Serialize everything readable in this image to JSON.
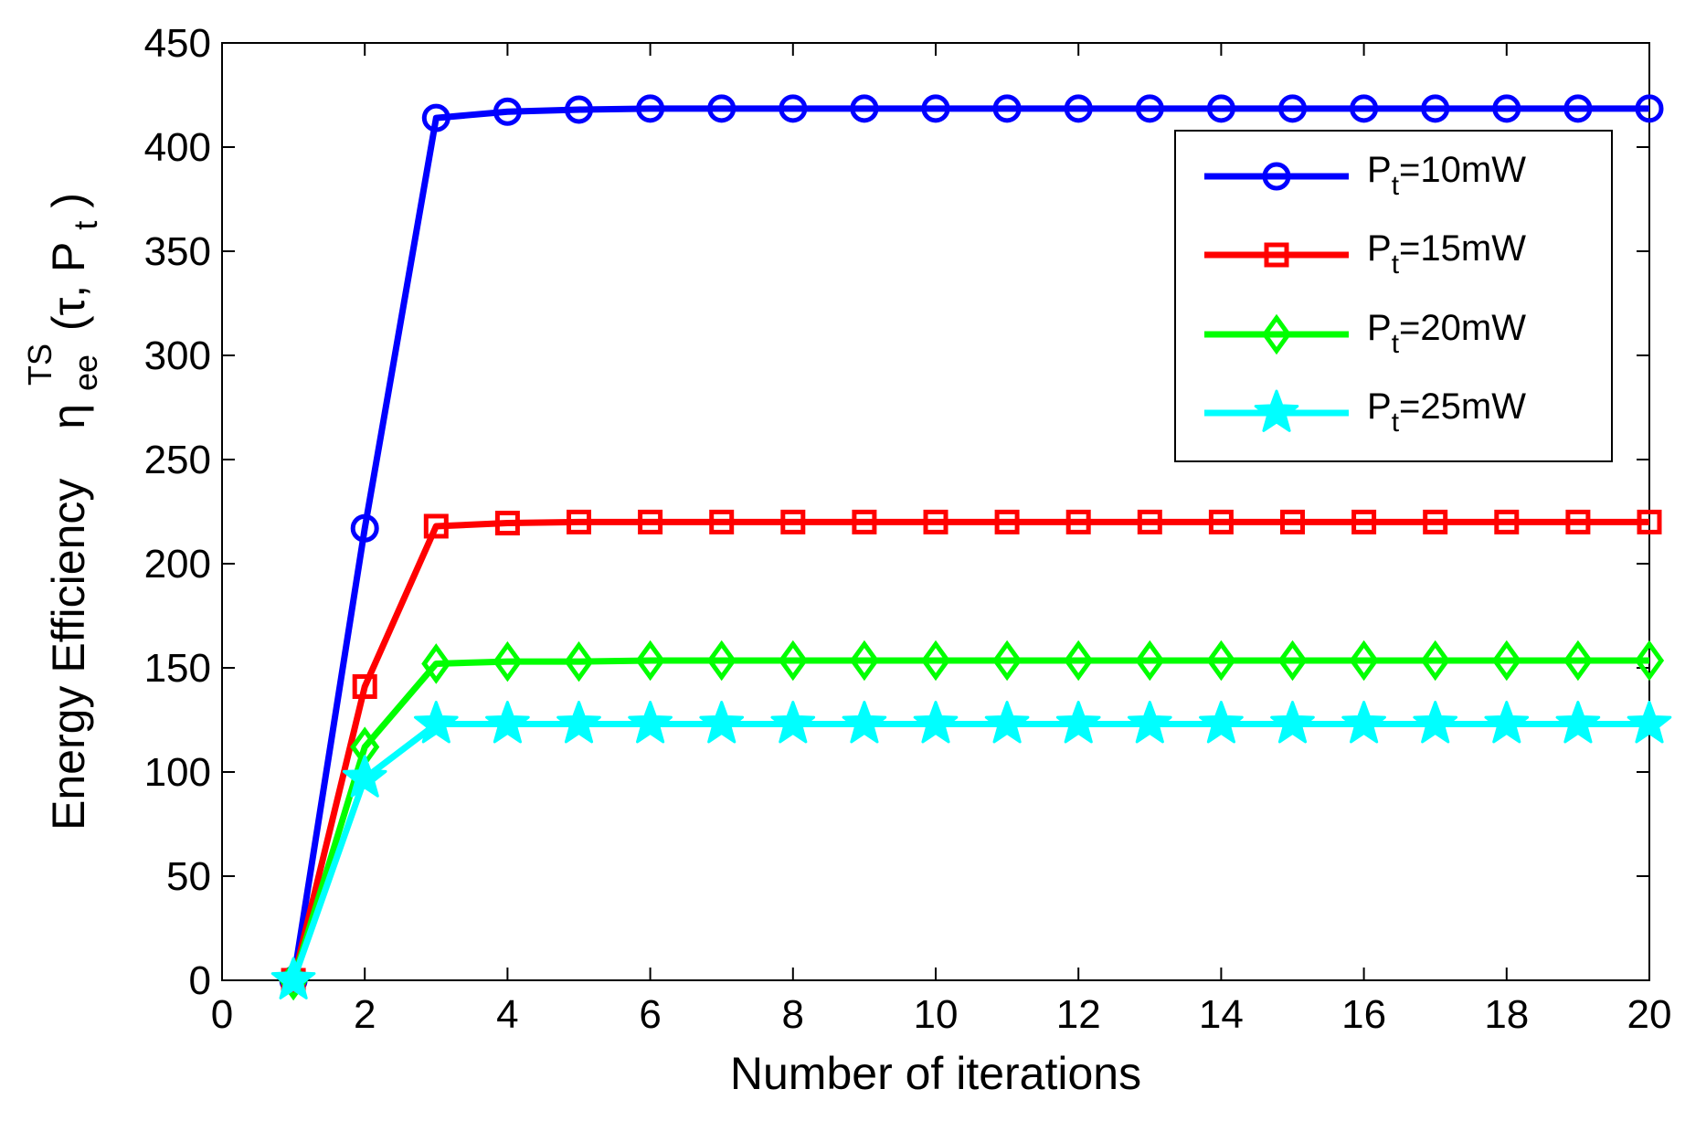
{
  "chart_data": {
    "type": "line",
    "xlabel": "Number of iterations",
    "ylabel": {
      "text": "Energy Efficiency",
      "symbol": "η",
      "sub": "ee",
      "sup": "TS",
      "args_open": "(τ, P",
      "args_sub": "t",
      "args_close": ")"
    },
    "xlim": [
      0,
      20
    ],
    "ylim": [
      0,
      450
    ],
    "x_ticks": [
      0,
      2,
      4,
      6,
      8,
      10,
      12,
      14,
      16,
      18,
      20
    ],
    "y_ticks": [
      0,
      50,
      100,
      150,
      200,
      250,
      300,
      350,
      400,
      450
    ],
    "grid": false,
    "legend_position": "top-right",
    "x": [
      1,
      2,
      3,
      4,
      5,
      6,
      7,
      8,
      9,
      10,
      11,
      12,
      13,
      14,
      15,
      16,
      17,
      18,
      19,
      20
    ],
    "series": [
      {
        "name": "P_t=10mW",
        "label_main": "P",
        "label_sub": "t",
        "label_rest": "=10mW",
        "color": "#0000ff",
        "marker": "circle",
        "values": [
          0,
          217,
          414,
          417,
          418,
          418.5,
          418.5,
          418.5,
          418.5,
          418.5,
          418.5,
          418.5,
          418.5,
          418.5,
          418.5,
          418.5,
          418.5,
          418.5,
          418.5,
          418.5
        ]
      },
      {
        "name": "P_t=15mW",
        "label_main": "P",
        "label_sub": "t",
        "label_rest": "=15mW",
        "color": "#ff0000",
        "marker": "square",
        "values": [
          0,
          141,
          218,
          219.5,
          220,
          220,
          220,
          220,
          220,
          220,
          220,
          220,
          220,
          220,
          220,
          220,
          220,
          220,
          220,
          220
        ]
      },
      {
        "name": "P_t=20mW",
        "label_main": "P",
        "label_sub": "t",
        "label_rest": "=20mW",
        "color": "#00ff00",
        "marker": "diamond",
        "values": [
          0,
          112,
          152,
          153,
          153,
          153.5,
          153.5,
          153.5,
          153.5,
          153.5,
          153.5,
          153.5,
          153.5,
          153.5,
          153.5,
          153.5,
          153.5,
          153.5,
          153.5,
          153.5
        ]
      },
      {
        "name": "P_t=25mW",
        "label_main": "P",
        "label_sub": "t",
        "label_rest": "=25mW",
        "color": "#00ffff",
        "marker": "star",
        "values": [
          0,
          97,
          123,
          123,
          123,
          123,
          123,
          123,
          123,
          123,
          123,
          123,
          123,
          123,
          123,
          123,
          123,
          123,
          123,
          123
        ]
      }
    ]
  }
}
